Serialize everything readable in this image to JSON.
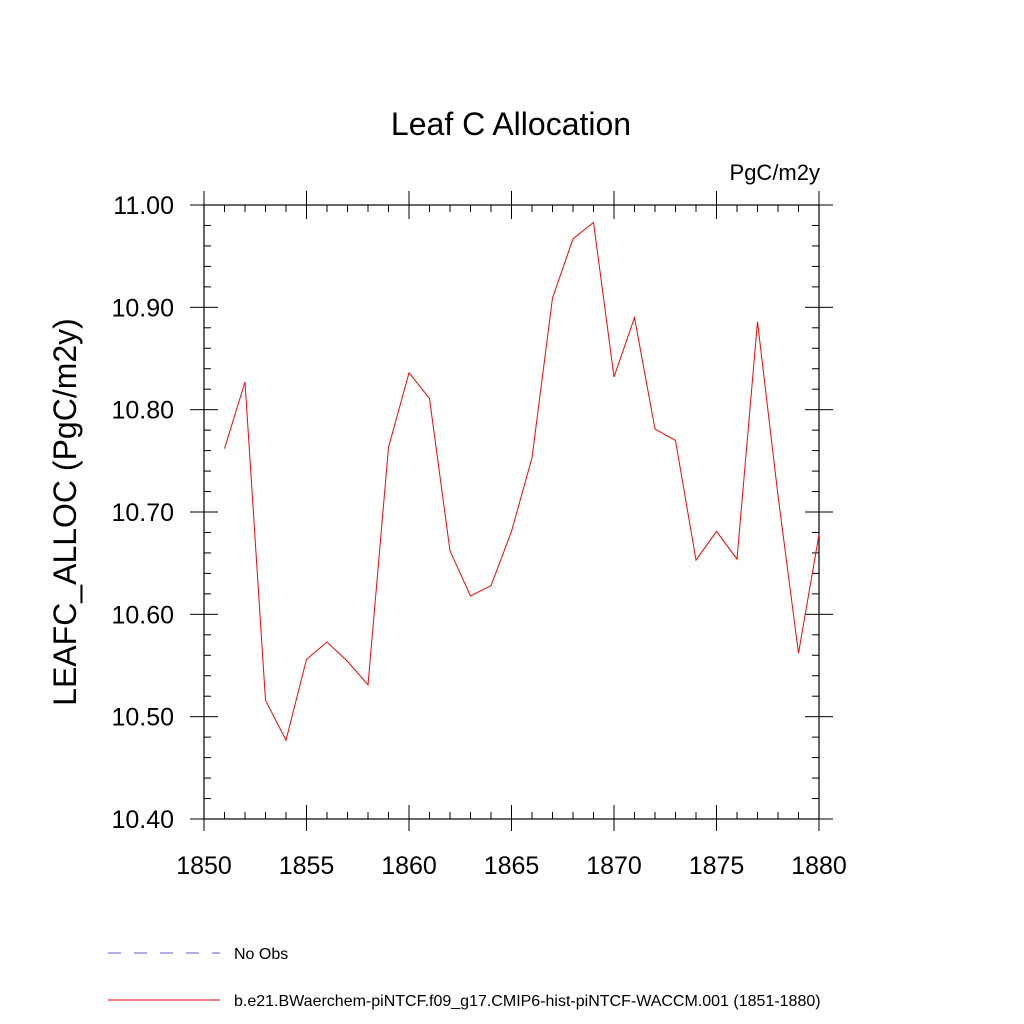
{
  "chart_data": {
    "type": "line",
    "title": "Leaf C Allocation",
    "units_label": "PgC/m2y",
    "xlabel": "",
    "ylabel": "LEAFC_ALLOC  (PgC/m2y)",
    "xlim": [
      1850,
      1880
    ],
    "ylim": [
      10.4,
      11.0
    ],
    "x_ticks": [
      1850,
      1855,
      1860,
      1865,
      1870,
      1875,
      1880
    ],
    "x_tick_labels": [
      "1850",
      "1855",
      "1860",
      "1865",
      "1870",
      "1875",
      "1880"
    ],
    "y_ticks": [
      10.4,
      10.5,
      10.6,
      10.7,
      10.8,
      10.9,
      11.0
    ],
    "y_tick_labels": [
      "10.40",
      "10.50",
      "10.60",
      "10.70",
      "10.80",
      "10.90",
      "11.00"
    ],
    "grid": false,
    "legend_position": "bottom-left",
    "series": [
      {
        "name": "b.e21.BWaerchem-piNTCF.f09_g17.CMIP6-hist-piNTCF-WACCM.001 (1851-1880)",
        "color": "#ff0000",
        "style": "solid",
        "x": [
          1851,
          1852,
          1853,
          1854,
          1855,
          1856,
          1857,
          1858,
          1859,
          1860,
          1861,
          1862,
          1863,
          1864,
          1865,
          1866,
          1867,
          1868,
          1869,
          1870,
          1871,
          1872,
          1873,
          1874,
          1875,
          1876,
          1877,
          1878,
          1879,
          1880
        ],
        "values": [
          10.762,
          10.827,
          10.516,
          10.477,
          10.556,
          10.573,
          10.554,
          10.531,
          10.763,
          10.836,
          10.811,
          10.662,
          10.618,
          10.628,
          10.681,
          10.753,
          10.909,
          10.967,
          10.983,
          10.832,
          10.89,
          10.781,
          10.77,
          10.653,
          10.681,
          10.654,
          10.886,
          10.716,
          10.562,
          10.678
        ]
      }
    ],
    "legend": [
      {
        "label": "No Obs",
        "color": "#6a5acd",
        "style": "dashed"
      },
      {
        "label": "b.e21.BWaerchem-piNTCF.f09_g17.CMIP6-hist-piNTCF-WACCM.001 (1851-1880)",
        "color": "#ff0000",
        "style": "solid"
      }
    ]
  }
}
